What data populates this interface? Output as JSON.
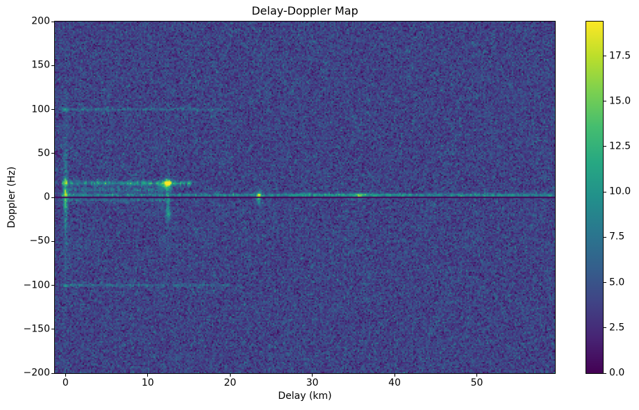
{
  "chart_data": {
    "type": "heatmap",
    "title": "Delay-Doppler Map",
    "xlabel": "Delay (km)",
    "ylabel": "Doppler (Hz)",
    "x_range": [
      -1.3,
      59.5
    ],
    "y_range": [
      -200,
      200
    ],
    "x_ticks": [
      0,
      10,
      20,
      30,
      40,
      50
    ],
    "y_ticks": [
      200,
      150,
      100,
      50,
      0,
      -50,
      -100,
      -150,
      -200
    ],
    "colormap": "viridis",
    "vmin": 0.0,
    "vmax": 19.4,
    "colorbar_ticks": [
      0.0,
      2.5,
      5.0,
      7.5,
      10.0,
      12.5,
      15.0,
      17.5
    ],
    "grid": false,
    "noise": {
      "mean": 3.9,
      "sd": 1.35,
      "speckle_prob": 0.012,
      "seed": 1337
    },
    "features": [
      {
        "name": "zero-doppler-ridge",
        "type": "hline",
        "doppler_hz": 2.5,
        "delay_from_km": -0.5,
        "delay_to_km": 59.6,
        "amp": 5.2,
        "sigma_hz": 1.3,
        "dotted": 0.45
      },
      {
        "name": "zero-doppler-ridge-bright-mid",
        "type": "hline",
        "doppler_hz": 2.5,
        "delay_from_km": 27,
        "delay_to_km": 40,
        "amp": 1.8,
        "sigma_hz": 1.8,
        "dotted": 0.6
      },
      {
        "name": "below-zero-left-ridge",
        "type": "hline",
        "doppler_hz": -3,
        "delay_from_km": -0.5,
        "delay_to_km": 13,
        "amp": 2.6,
        "sigma_hz": 1.2,
        "dotted": 0.55
      },
      {
        "name": "scatter-band-16hz",
        "type": "hline",
        "doppler_hz": 16,
        "delay_from_km": -0.5,
        "delay_to_km": 15.5,
        "amp": 6.0,
        "sigma_hz": 1.7,
        "dotted": 0.6
      },
      {
        "name": "scatter-band-8hz",
        "type": "hline",
        "doppler_hz": 8.5,
        "delay_from_km": -0.5,
        "delay_to_km": 13,
        "amp": 3.2,
        "sigma_hz": 1.7,
        "dotted": 0.65
      },
      {
        "name": "ambiguity-line-plus100hz",
        "type": "hline",
        "doppler_hz": 100,
        "delay_from_km": -0.7,
        "delay_to_km": 20,
        "amp": 2.6,
        "sigma_hz": 1.0,
        "dotted": 0.6
      },
      {
        "name": "ambiguity-line-minus100hz",
        "type": "hline",
        "doppler_hz": -100,
        "delay_from_km": -0.7,
        "delay_to_km": 20,
        "amp": 2.8,
        "sigma_hz": 1.0,
        "dotted": 0.6
      },
      {
        "name": "direct-signal-streak",
        "type": "vline",
        "delay_km": 0,
        "center_hz": 0,
        "sigma_hz": 40,
        "amp": 3.2,
        "sigma_km": 0.22,
        "dotted": 0.35
      },
      {
        "name": "direct-signal-tall-faint",
        "type": "vline",
        "delay_km": 0,
        "center_hz": 0,
        "sigma_hz": 90,
        "amp": 1.2,
        "sigma_km": 0.12,
        "dotted": 0.3
      },
      {
        "name": "direct-signal-core-18hz",
        "type": "blob",
        "delay_km": 0,
        "doppler_hz": 18,
        "amp": 7.0,
        "sigma_km": 0.16,
        "sigma_hz": 3.0
      },
      {
        "name": "direct-signal-core-5hz",
        "type": "blob",
        "delay_km": 0,
        "doppler_hz": 5,
        "amp": 8.5,
        "sigma_km": 0.13,
        "sigma_hz": 3.0
      },
      {
        "name": "direct-signal-core-minus8hz",
        "type": "blob",
        "delay_km": 0,
        "doppler_hz": -8,
        "amp": 5.0,
        "sigma_km": 0.16,
        "sigma_hz": 4.0
      },
      {
        "name": "direct-ambiguity-dot-plus100",
        "type": "blob",
        "delay_km": 0,
        "doppler_hz": 100,
        "amp": 5.0,
        "sigma_km": 0.2,
        "sigma_hz": 1.2
      },
      {
        "name": "direct-ambiguity-dot-minus100",
        "type": "blob",
        "delay_km": 0,
        "doppler_hz": -100,
        "amp": 5.5,
        "sigma_km": 0.22,
        "sigma_hz": 1.2
      },
      {
        "name": "target-12km-peak",
        "type": "blob",
        "delay_km": 12.4,
        "doppler_hz": 16.5,
        "amp": 15.5,
        "sigma_km": 0.3,
        "sigma_hz": 2.6
      },
      {
        "name": "target-12km-smear",
        "type": "blob",
        "delay_km": 12.1,
        "doppler_hz": 12.5,
        "amp": 5.5,
        "sigma_km": 0.5,
        "sigma_hz": 2.4
      },
      {
        "name": "target-12km-vertical-streak",
        "type": "vline",
        "delay_km": 12.45,
        "center_hz": -3,
        "sigma_hz": 15,
        "amp": 4.2,
        "sigma_km": 0.16,
        "dotted": 0.3
      },
      {
        "name": "target-12km-lower-echo",
        "type": "blob",
        "delay_km": 12.5,
        "doppler_hz": -20,
        "amp": 4.2,
        "sigma_km": 0.22,
        "sigma_hz": 3.2
      },
      {
        "name": "target-12km-tall-faint",
        "type": "vline",
        "delay_km": 12.45,
        "center_hz": 30,
        "sigma_hz": 60,
        "amp": 1.0,
        "sigma_km": 0.1,
        "dotted": 0.4
      },
      {
        "name": "faint-streak-11km",
        "type": "vline",
        "delay_km": 11.55,
        "center_hz": 4,
        "sigma_hz": 9,
        "amp": 1.8,
        "sigma_km": 0.12,
        "dotted": 0.4
      },
      {
        "name": "target-23km-peak",
        "type": "blob",
        "delay_km": 23.5,
        "doppler_hz": 1.5,
        "amp": 9.5,
        "sigma_km": 0.22,
        "sigma_hz": 4.2
      },
      {
        "name": "target-23km-lower-echo",
        "type": "blob",
        "delay_km": 23.5,
        "doppler_hz": -6.5,
        "amp": 4.2,
        "sigma_km": 0.2,
        "sigma_hz": 2.4
      },
      {
        "name": "target-35km-peak",
        "type": "blob",
        "delay_km": 35.7,
        "doppler_hz": 1.5,
        "amp": 6.0,
        "sigma_km": 0.3,
        "sigma_hz": 2.8
      },
      {
        "name": "target-34km-lower-dot",
        "type": "blob",
        "delay_km": 34.7,
        "doppler_hz": -2,
        "amp": 3.2,
        "sigma_km": 0.22,
        "sigma_hz": 1.4
      },
      {
        "name": "zero-doppler-clutter-null",
        "type": "dark_hline",
        "doppler_hz": 0,
        "halfwidth_hz": 1.5,
        "value": 0.3
      }
    ]
  }
}
